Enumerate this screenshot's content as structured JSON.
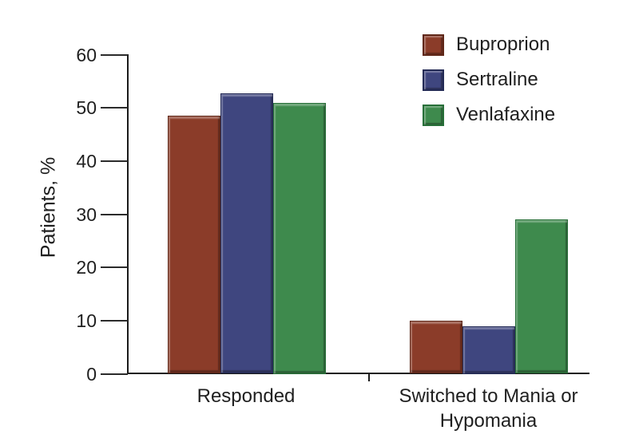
{
  "chart_data": {
    "type": "bar",
    "title": "",
    "xlabel": "",
    "ylabel": "Patients, %",
    "ylim": [
      0,
      60
    ],
    "yticks": [
      0,
      10,
      20,
      30,
      40,
      50,
      60
    ],
    "grid": false,
    "legend_position": "top-right",
    "background_color": "#ffffff",
    "axis_color": "#1a1a1a",
    "text_color": "#1f1f1f",
    "categories": [
      "Responded",
      "Switched to Mania or Hypomania"
    ],
    "series": [
      {
        "name": "Buproprion",
        "color": "#8b3c29",
        "edge_color": "#5f2718",
        "values": [
          48.5,
          10
        ]
      },
      {
        "name": "Sertraline",
        "color": "#3f467f",
        "edge_color": "#232a55",
        "values": [
          52.7,
          9
        ]
      },
      {
        "name": "Venlafaxine",
        "color": "#3e8a4d",
        "edge_color": "#276f38",
        "values": [
          51,
          29
        ]
      }
    ]
  }
}
